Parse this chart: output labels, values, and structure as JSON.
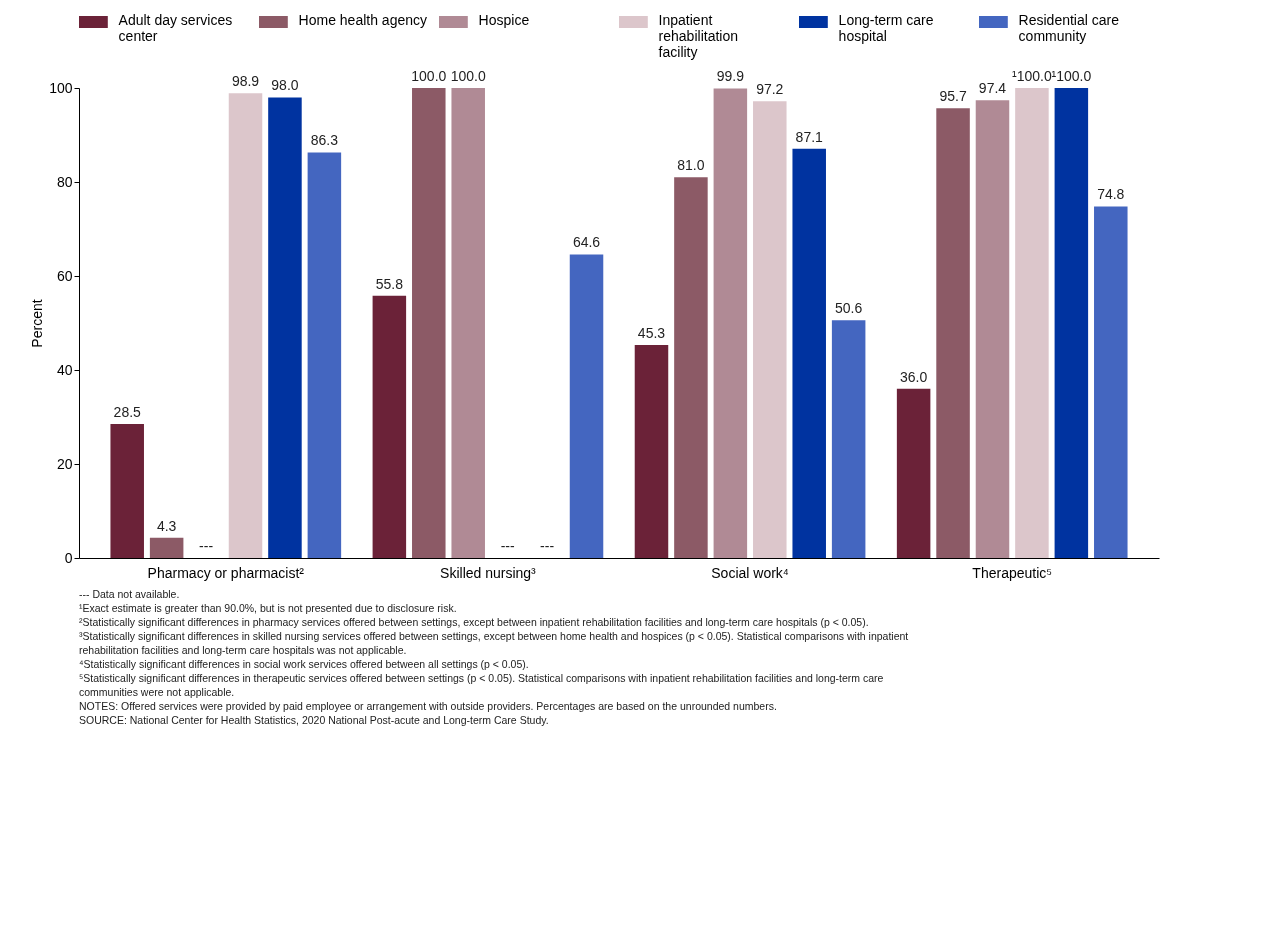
{
  "chart_data": {
    "type": "bar",
    "ylabel": "Percent",
    "categories": [
      "Pharmacy or pharmacist²",
      "Skilled nursing³",
      "Social work⁴",
      "Therapeutic⁵"
    ],
    "series": [
      {
        "name": "Adult day services center",
        "color": "#6b2238",
        "values": [
          28.5,
          55.8,
          45.3,
          36.0
        ],
        "value_labels": [
          "28.5",
          "55.8",
          "45.3",
          "36.0"
        ]
      },
      {
        "name": "Home health agency",
        "color": "#8c5a66",
        "values": [
          4.3,
          100.0,
          81.0,
          95.7
        ],
        "value_labels": [
          "4.3",
          "100.0",
          "81.0",
          "95.7"
        ]
      },
      {
        "name": "Hospice",
        "color": "#b08a95",
        "values": [
          null,
          100.0,
          99.9,
          97.4
        ],
        "value_labels": [
          "---",
          "100.0",
          "99.9",
          "97.4"
        ]
      },
      {
        "name": "Inpatient rehabilitation facility",
        "color": "#dcc6cb",
        "values": [
          98.9,
          null,
          97.2,
          100.0
        ],
        "value_labels": [
          "98.9",
          "---",
          "97.2",
          "¹100.0"
        ]
      },
      {
        "name": "Long-term care hospital",
        "color": "#0033a0",
        "values": [
          98.0,
          null,
          87.1,
          100.0
        ],
        "value_labels": [
          "98.0",
          "---",
          "87.1",
          "¹100.0"
        ]
      },
      {
        "name": "Residential care community",
        "color": "#4466c0",
        "values": [
          86.3,
          64.6,
          50.6,
          74.8
        ],
        "value_labels": [
          "86.3",
          "64.6",
          "50.6",
          "74.8"
        ]
      }
    ],
    "ylim": [
      0,
      100
    ],
    "yticks": [
      0,
      20,
      40,
      60,
      80,
      100
    ],
    "grid": false,
    "legend": "top",
    "annotations": [
      "--- Data not available.",
      "¹Exact estimate is greater than 90.0%, but is not presented due to disclosure risk.",
      "²Statistically significant differences in pharmacy services offered between settings, except between inpatient rehabilitation facilities and long-term care hospitals (p < 0.05).",
      "³Statistically significant differences in skilled nursing services offered between settings, except between home health and hospices (p < 0.05). Statistical comparisons with inpatient rehabilitation facilities and long-term care hospitals was not applicable.",
      "⁴Statistically significant differences in social work services offered between all settings (p < 0.05).",
      "⁵Statistically significant differences in therapeutic services offered between settings (p < 0.05). Statistical comparisons with inpatient rehabilitation facilities and long-term care communities were not applicable.",
      "NOTES: Offered services were provided by paid employee or arrangement with outside providers. Percentages are based on the unrounded numbers.",
      "SOURCE: National Center for Health Statistics, 2020 National Post-acute and Long-term Care Study."
    ]
  }
}
